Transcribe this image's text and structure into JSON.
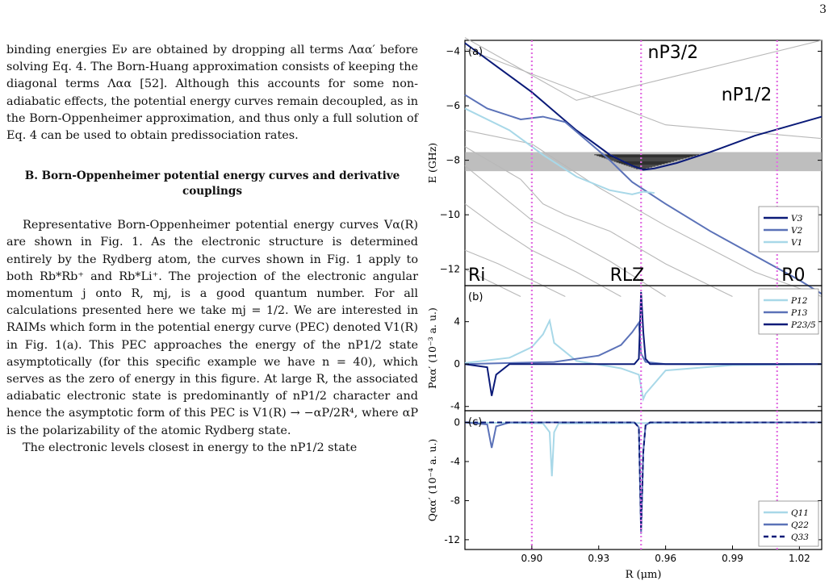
{
  "page_number": "3",
  "text": {
    "p1": "binding energies Eν are obtained by dropping all terms Λαα′ before solving Eq. 4. The Born-Huang approximation consists of keeping the diagonal terms Λαα [52]. Although this accounts for some non-adiabatic effects, the potential energy curves remain decoupled, as in the Born-Oppenheimer approximation, and thus only a full solution of Eq. 4 can be used to obtain predissociation rates.",
    "section_title": "B.   Born-Oppenheimer potential energy curves and derivative couplings",
    "p2": "Representative Born-Oppenheimer potential energy curves Vα(R) are shown in Fig. 1. As the electronic structure is determined entirely by the Rydberg atom, the curves shown in Fig. 1 apply to both Rb*Rb⁺ and Rb*Li⁺. The projection of the electronic angular momentum j onto R, mj, is a good quantum number. For all calculations presented here we take mj = 1/2. We are interested in RAIMs which form in the potential energy curve (PEC) denoted V1(R) in Fig. 1(a). This PEC approaches the energy of the nP1/2 state asymptotically (for this specific example we have n = 40), which serves as the zero of energy in this figure. At large R, the associated adiabatic electronic state is predominantly of nP1/2 character and hence the asymptotic form of this PEC is V1(R) → −αP/2R⁴, where αP is the polarizability of the atomic Rydberg state.",
    "p3": "The electronic levels closest in energy to the nP1/2 state"
  },
  "chart_data": [
    {
      "panel": "(a)",
      "type": "line",
      "ylabel": "E (GHz)",
      "ylim": [
        -12.6,
        -3.6
      ],
      "yticks": [
        "−4",
        "−6",
        "−8",
        "−10",
        "−12"
      ],
      "labels": [
        "nP3/2",
        "nP1/2",
        "Ri",
        "RLZ",
        "R0"
      ],
      "legend": [
        "V3",
        "V2",
        "V1"
      ],
      "legend_position": "middle-right",
      "colors": {
        "V3": "#a8d8e8",
        "V2": "#5b72b8",
        "V1": "#0a1a78",
        "other": "#b8b8b8",
        "marker": "#e26ee2",
        "band": "#a8a8a8"
      },
      "series": [
        {
          "name": "V1",
          "x": [
            0.87,
            0.885,
            0.9,
            0.91,
            0.92,
            0.935,
            0.945,
            0.95,
            0.955,
            0.965,
            0.98,
            1.0,
            1.03
          ],
          "y": [
            -3.7,
            -4.6,
            -5.5,
            -6.2,
            -6.9,
            -7.8,
            -8.2,
            -8.35,
            -8.3,
            -8.1,
            -7.7,
            -7.1,
            -6.4
          ]
        },
        {
          "name": "V2",
          "x": [
            0.87,
            0.88,
            0.895,
            0.905,
            0.915,
            0.925,
            0.935,
            0.945,
            0.96,
            0.98,
            1.0,
            1.02,
            1.03
          ],
          "y": [
            -5.6,
            -6.1,
            -6.5,
            -6.4,
            -6.6,
            -7.3,
            -8.0,
            -8.8,
            -9.6,
            -10.6,
            -11.5,
            -12.4,
            -12.9
          ]
        },
        {
          "name": "V3",
          "x": [
            0.87,
            0.89,
            0.905,
            0.92,
            0.935,
            0.945,
            0.95,
            0.955
          ],
          "y": [
            -6.1,
            -6.9,
            -7.8,
            -8.6,
            -9.1,
            -9.25,
            -9.15,
            -9.2
          ]
        }
      ],
      "band": [
        -7.7,
        -8.4
      ]
    },
    {
      "panel": "(b)",
      "type": "line",
      "ylabel": "Pαα′ (10⁻³ a. u.)",
      "ylim": [
        -4.4,
        7.4
      ],
      "yticks": [
        "4",
        "0",
        "-4"
      ],
      "legend": [
        "P12",
        "P13",
        "P23/5"
      ],
      "legend_position": "top-right",
      "series": [
        {
          "name": "P12",
          "x": [
            0.87,
            0.89,
            0.9,
            0.905,
            0.908,
            0.91,
            0.92,
            0.94,
            0.948,
            0.95,
            0.951,
            0.96,
            0.99,
            1.03
          ],
          "y": [
            0.1,
            0.6,
            1.6,
            2.8,
            4.1,
            2.0,
            0.3,
            -0.4,
            -1.0,
            -3.3,
            -2.8,
            -0.6,
            -0.1,
            0.0
          ]
        },
        {
          "name": "P13",
          "x": [
            0.87,
            0.91,
            0.93,
            0.94,
            0.945,
            0.948,
            0.949,
            0.951,
            0.96,
            1.03
          ],
          "y": [
            0.0,
            0.2,
            0.8,
            1.8,
            3.0,
            3.9,
            1.0,
            0.2,
            0.0,
            0.0
          ]
        },
        {
          "name": "P23/5",
          "x": [
            0.87,
            0.88,
            0.882,
            0.884,
            0.89,
            0.946,
            0.948,
            0.949,
            0.95,
            0.951,
            0.953,
            1.03
          ],
          "y": [
            0.0,
            -0.3,
            -3.0,
            -1.0,
            0.0,
            0.0,
            0.5,
            6.8,
            3.0,
            0.5,
            0.0,
            0.0
          ]
        }
      ]
    },
    {
      "panel": "(c)",
      "type": "line",
      "ylabel": "Qαα′ (10⁻⁴ a. u.)",
      "xlabel": "R (μm)",
      "ylim": [
        -13.0,
        1.2
      ],
      "yticks": [
        "0",
        "-4",
        "-8",
        "-12"
      ],
      "xticks": [
        "0.90",
        "0.93",
        "0.96",
        "0.99",
        "1.02"
      ],
      "xlim": [
        0.87,
        1.03
      ],
      "legend": [
        "Q11",
        "Q22",
        "Q33"
      ],
      "legend_position": "bottom-right",
      "series": [
        {
          "name": "Q11",
          "x": [
            0.87,
            0.905,
            0.908,
            0.909,
            0.91,
            0.912,
            1.03
          ],
          "y": [
            0.0,
            -0.1,
            -1.0,
            -5.5,
            -1.0,
            -0.1,
            0.0
          ]
        },
        {
          "name": "Q22",
          "x": [
            0.87,
            0.88,
            0.882,
            0.884,
            0.89,
            0.946,
            0.948,
            0.949,
            0.95,
            0.951,
            0.953,
            1.03
          ],
          "y": [
            0.0,
            -0.2,
            -2.6,
            -0.4,
            0.0,
            0.0,
            -0.5,
            -11.4,
            -3.0,
            -0.3,
            0.0,
            0.0
          ]
        },
        {
          "name": "Q33",
          "x": [
            0.87,
            0.946,
            0.948,
            0.949,
            0.95,
            0.951,
            0.953,
            1.03
          ],
          "y": [
            0.0,
            0.0,
            -0.5,
            -11.0,
            -3.0,
            -0.3,
            0.0,
            0.0
          ]
        }
      ]
    }
  ],
  "vertical_markers_x": [
    0.9,
    0.949,
    1.01
  ]
}
